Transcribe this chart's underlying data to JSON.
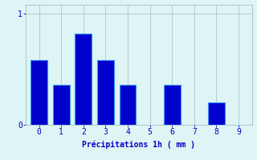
{
  "categories": [
    0,
    1,
    2,
    3,
    4,
    5,
    6,
    7,
    8,
    9
  ],
  "values": [
    0.58,
    0.36,
    0.82,
    0.58,
    0.36,
    0.0,
    0.36,
    0.0,
    0.2,
    0.0
  ],
  "bar_color": "#0000cc",
  "bar_edge_color": "#3399ff",
  "background_color": "#dff4f4",
  "grid_color": "#9ec0c0",
  "text_color": "#0000cc",
  "xlabel": "Précipitations 1h ( mm )",
  "ylim": [
    0,
    1.08
  ],
  "xlim": [
    -0.6,
    9.6
  ],
  "yticks": [
    0,
    1
  ],
  "xticks": [
    0,
    1,
    2,
    3,
    4,
    5,
    6,
    7,
    8,
    9
  ],
  "bar_width": 0.75,
  "label_fontsize": 7,
  "tick_fontsize": 7
}
